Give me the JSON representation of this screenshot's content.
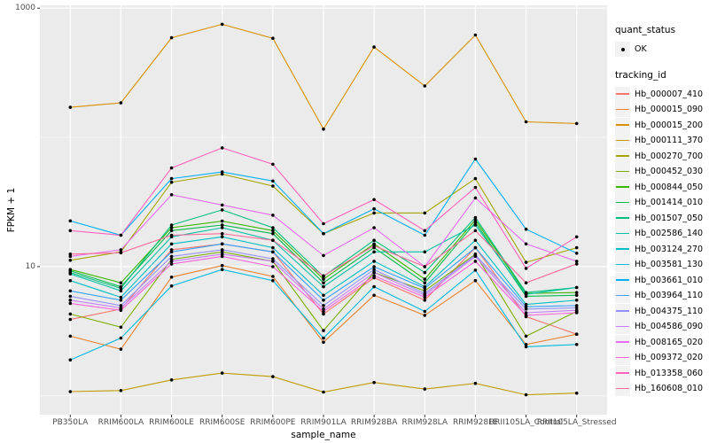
{
  "chart_data": {
    "type": "line",
    "title": "",
    "xlabel": "sample_name",
    "ylabel": "FPKM + 1",
    "y_scale": "log10",
    "ylim": [
      0.716,
      1052
    ],
    "y_tick_labels": [
      "1000",
      "10"
    ],
    "y_tick_values": [
      1000,
      10
    ],
    "y_gridlines_major": [
      10,
      1000
    ],
    "y_gridlines_minor": [
      1,
      100
    ],
    "grid": "on",
    "legend_position": "right",
    "x_categories": [
      "PB350LA",
      "RRIM600LA",
      "RRIM600LE",
      "RRIM600SE",
      "RRIM600PE",
      "RRIM901LA",
      "RRIM928BA",
      "RRIM928LA",
      "RRIM928LE",
      "RRII105LA_Control",
      "RRII105LA_Stressed"
    ],
    "series": [
      {
        "name": "Hb_000007_410",
        "color": "#F8766D",
        "values": [
          3.9,
          4.7,
          13.5,
          15,
          13,
          4.3,
          8.2,
          5.5,
          14,
          4.1,
          3.0
        ]
      },
      {
        "name": "Hb_000015_090",
        "color": "#EA8331",
        "values": [
          2.9,
          2.3,
          8.3,
          10.2,
          8.4,
          2.6,
          6.0,
          4.2,
          7.8,
          2.5,
          3.0
        ]
      },
      {
        "name": "Hb_000015_200",
        "color": "#D89000",
        "values": [
          171,
          185,
          590,
          750,
          585,
          116,
          500,
          250,
          620,
          132,
          128
        ]
      },
      {
        "name": "Hb_000111_370",
        "color": "#C09B00",
        "values": [
          1.08,
          1.1,
          1.33,
          1.5,
          1.41,
          1.07,
          1.27,
          1.13,
          1.25,
          1.02,
          1.05
        ]
      },
      {
        "name": "Hb_000270_700",
        "color": "#A3A500",
        "values": [
          11.2,
          13.0,
          45,
          52,
          42,
          18,
          26,
          26,
          48,
          10.8,
          14
        ]
      },
      {
        "name": "Hb_000452_030",
        "color": "#7CAE00",
        "values": [
          4.3,
          3.4,
          11.4,
          13,
          11,
          3.2,
          9.0,
          6.5,
          12.5,
          2.9,
          4.5
        ]
      },
      {
        "name": "Hb_000844_050",
        "color": "#39B600",
        "values": [
          9.5,
          7.5,
          20,
          22.5,
          19,
          8.0,
          15,
          8.0,
          23,
          6.2,
          6.3
        ]
      },
      {
        "name": "Hb_001414_010",
        "color": "#00BB4E",
        "values": [
          9.3,
          7.0,
          19,
          21,
          18,
          7.5,
          14,
          7.5,
          22,
          5.9,
          6.0
        ]
      },
      {
        "name": "Hb_001507_050",
        "color": "#00BF7D",
        "values": [
          9.0,
          6.8,
          21,
          27.5,
          20,
          8.4,
          16,
          9.0,
          24,
          6.3,
          6.9
        ]
      },
      {
        "name": "Hb_002586_140",
        "color": "#00C1A3",
        "values": [
          8.8,
          6.5,
          17,
          20,
          16,
          7.0,
          13,
          13,
          21,
          6.1,
          6.9
        ]
      },
      {
        "name": "Hb_003124_270",
        "color": "#00BFC4",
        "values": [
          7.8,
          5.8,
          15,
          17,
          14,
          6.0,
          11,
          7.0,
          16,
          5.1,
          5.5
        ]
      },
      {
        "name": "Hb_003581_130",
        "color": "#00BAE0",
        "values": [
          1.9,
          2.8,
          7.1,
          9.5,
          7.8,
          2.8,
          7.0,
          4.5,
          9.4,
          2.4,
          2.5
        ]
      },
      {
        "name": "Hb_003661_010",
        "color": "#00B0F6",
        "values": [
          22.6,
          17.5,
          48,
          54,
          46,
          18,
          28,
          17.5,
          68,
          19.5,
          12.7
        ]
      },
      {
        "name": "Hb_003964_110",
        "color": "#35A2FF",
        "values": [
          6.5,
          5.5,
          13,
          15,
          13,
          5.5,
          10,
          6.8,
          14,
          4.9,
          5.0
        ]
      },
      {
        "name": "Hb_004375_110",
        "color": "#9590FF",
        "values": [
          5.9,
          5.0,
          12,
          13.5,
          11.5,
          5.0,
          9.5,
          6.2,
          12.3,
          4.7,
          4.8
        ]
      },
      {
        "name": "Hb_004586_090",
        "color": "#C77CFF",
        "values": [
          5.5,
          4.8,
          11,
          12.5,
          11,
          4.7,
          9.0,
          6.0,
          12,
          4.4,
          4.6
        ]
      },
      {
        "name": "Hb_008165_020",
        "color": "#E76BF3",
        "values": [
          12,
          13.5,
          36,
          30,
          25,
          12.2,
          20,
          10,
          34,
          15,
          11
        ]
      },
      {
        "name": "Hb_009372_020",
        "color": "#FA62DB",
        "values": [
          5.2,
          4.6,
          10.5,
          12,
          10,
          4.5,
          8.5,
          5.8,
          11,
          4.2,
          4.4
        ]
      },
      {
        "name": "Hb_013358_060",
        "color": "#FF62BC",
        "values": [
          19,
          17.5,
          58,
          83,
          62,
          21.5,
          33,
          19,
          41,
          9.7,
          17
        ]
      },
      {
        "name": "Hb_160608_010",
        "color": "#FF6A98",
        "values": [
          12.5,
          12.8,
          17.5,
          18,
          16,
          8.5,
          14.5,
          10,
          19,
          7.5,
          10.5
        ]
      }
    ]
  },
  "legend": {
    "quant_status_title": "quant_status",
    "quant_status_items": [
      {
        "label": "OK",
        "marker": "point",
        "color": "#000000"
      }
    ],
    "tracking_id_title": "tracking_id"
  },
  "axes": {
    "x_title": "sample_name",
    "y_title": "FPKM + 1"
  },
  "colors": {
    "panel_bg": "#EBEBEB",
    "gridline": "#FFFFFF",
    "tick_text": "#4D4D4D",
    "tick_mark": "#333333",
    "point_marker": "#000000",
    "legend_key_bg": "#F2F2F2"
  }
}
